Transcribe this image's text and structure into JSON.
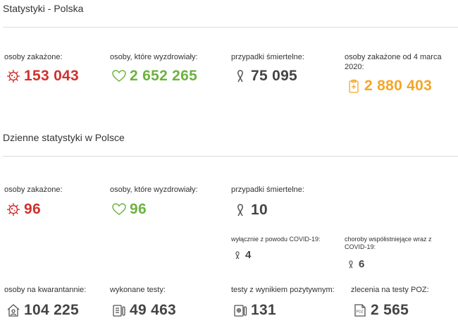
{
  "header": {
    "title": "Statystyki - Polska"
  },
  "totals": {
    "infected": {
      "label": "osoby zakażone:",
      "value": "153 043"
    },
    "recovered": {
      "label": "osoby, które wyzdrowiały:",
      "value": "2 652 265"
    },
    "deaths": {
      "label": "przypadki śmiertelne:",
      "value": "75 095"
    },
    "since_march": {
      "label": "osoby zakażone od 4 marca 2020:",
      "value": "2 880 403"
    }
  },
  "daily_header": {
    "title": "Dzienne statystyki w Polsce"
  },
  "daily": {
    "infected": {
      "label": "osoby zakażone:",
      "value": "96"
    },
    "recovered": {
      "label": "osoby, które wyzdrowiały:",
      "value": "96"
    },
    "deaths": {
      "label": "przypadki śmiertelne:",
      "value": "10"
    },
    "covid_only": {
      "label": "wyłącznie z powodu COVID-19:",
      "value": "4"
    },
    "comorbid": {
      "label": "choroby współistniejące wraz z COVID-19:",
      "value": "6"
    },
    "quarantine": {
      "label": "osoby na kwarantannie:",
      "value": "104 225"
    },
    "tests": {
      "label": "wykonane testy:",
      "value": "49 463"
    },
    "positive_tests": {
      "label": "testy z wynikiem pozytywnym:",
      "value": "131"
    },
    "poz_orders": {
      "label": "zlecenia na testy POZ:",
      "value": "2 565"
    }
  },
  "icons": {
    "virus": "virus-icon",
    "heart": "heart-icon",
    "ribbon": "ribbon-icon",
    "clipboard": "clipboard-icon",
    "house": "house-icon",
    "test": "test-tube-icon",
    "lab": "lab-report-icon",
    "poz": "poz-document-icon"
  },
  "colors": {
    "red": "#d0312d",
    "green": "#6cb33f",
    "gray": "#444444",
    "orange": "#f5a623",
    "divider": "#dddddd"
  }
}
